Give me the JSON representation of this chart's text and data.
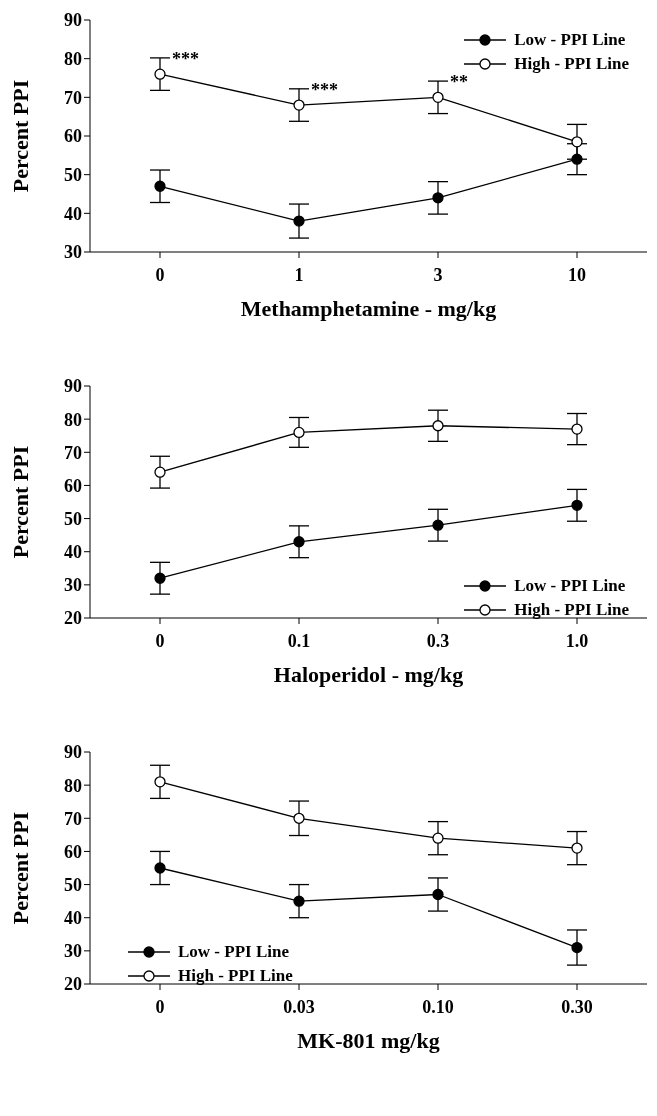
{
  "chart_data": [
    {
      "type": "line",
      "xlabel": "Methamphetamine - mg/kg",
      "ylabel": "Percent PPI",
      "categories": [
        "0",
        "1",
        "3",
        "10"
      ],
      "ylim": [
        30,
        90
      ],
      "yticks": [
        30,
        40,
        50,
        60,
        70,
        80,
        90
      ],
      "legend": "top right",
      "marker": "circle",
      "line_style": "solid",
      "grid": false,
      "series": [
        {
          "name": "Low - PPI Line",
          "color": "#000000",
          "values": [
            47,
            38,
            44,
            54
          ],
          "errors": [
            4.2,
            4.4,
            4.2,
            4
          ]
        },
        {
          "name": "High - PPI Line",
          "color": "#000000",
          "values": [
            76,
            68,
            70,
            58.5
          ],
          "errors": [
            4.2,
            4.2,
            4.2,
            4.5
          ]
        }
      ],
      "annotations": [
        {
          "text": "***",
          "x": "0",
          "y": 80
        },
        {
          "text": "***",
          "x": "1",
          "y": 72
        },
        {
          "text": "**",
          "x": "3",
          "y": 74
        }
      ]
    },
    {
      "type": "line",
      "xlabel": "Haloperidol - mg/kg",
      "ylabel": "Percent PPI",
      "categories": [
        "0",
        "0.1",
        "0.3",
        "1.0"
      ],
      "ylim": [
        20,
        90
      ],
      "yticks": [
        20,
        30,
        40,
        50,
        60,
        70,
        80,
        90
      ],
      "legend": "bottom right",
      "marker": "circle",
      "line_style": "solid",
      "grid": false,
      "series": [
        {
          "name": "Low - PPI Line",
          "color": "#000000",
          "values": [
            32,
            43,
            48,
            54
          ],
          "errors": [
            4.8,
            4.8,
            4.8,
            4.8
          ]
        },
        {
          "name": "High - PPI Line",
          "color": "#000000",
          "values": [
            64,
            76,
            78,
            77
          ],
          "errors": [
            4.8,
            4.5,
            4.7,
            4.7
          ]
        }
      ]
    },
    {
      "type": "line",
      "xlabel": "MK-801 mg/kg",
      "ylabel": "Percent PPI",
      "categories": [
        "0",
        "0.03",
        "0.10",
        "0.30"
      ],
      "ylim": [
        20,
        90
      ],
      "yticks": [
        20,
        30,
        40,
        50,
        60,
        70,
        80,
        90
      ],
      "legend": "bottom left",
      "marker": "circle",
      "line_style": "solid",
      "grid": false,
      "series": [
        {
          "name": "Low - PPI Line",
          "color": "#000000",
          "values": [
            55,
            45,
            47,
            31
          ],
          "errors": [
            5,
            5,
            5,
            5.3
          ]
        },
        {
          "name": "High - PPI Line",
          "color": "#000000",
          "values": [
            81,
            70,
            64,
            61
          ],
          "errors": [
            5,
            5.2,
            5,
            5
          ]
        }
      ]
    }
  ]
}
